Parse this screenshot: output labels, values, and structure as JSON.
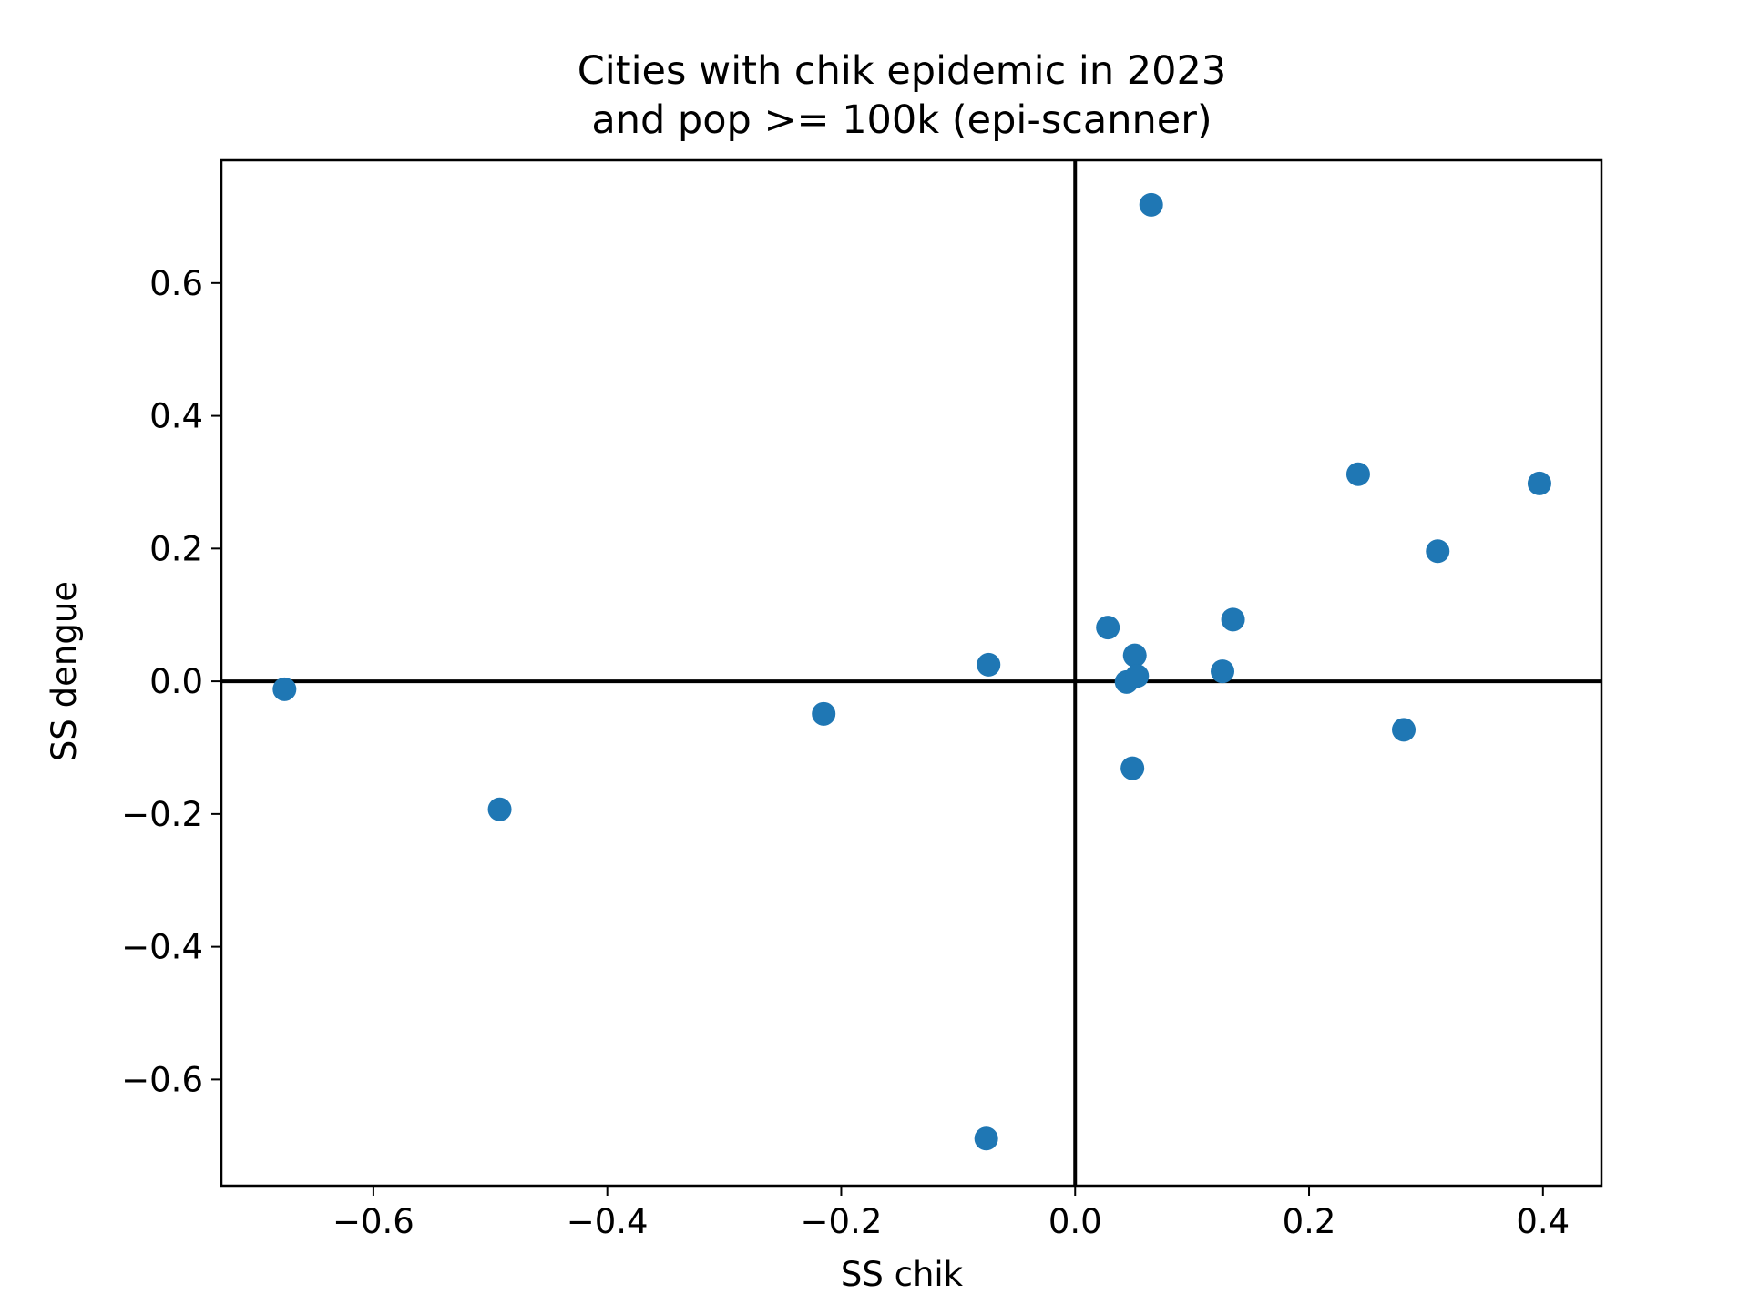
{
  "chart_data": {
    "type": "scatter",
    "title": [
      "Cities with chik epidemic in 2023",
      "and pop >= 100k (epi-scanner)"
    ],
    "xlabel": "SS chik",
    "ylabel": "SS dengue",
    "xlim": [
      -0.73,
      0.45
    ],
    "ylim": [
      -0.76,
      0.785
    ],
    "xticks": [
      -0.6,
      -0.4,
      -0.2,
      0.0,
      0.2,
      0.4
    ],
    "xtick_labels": [
      "−0.6",
      "−0.4",
      "−0.2",
      "0.0",
      "0.2",
      "0.4"
    ],
    "yticks": [
      0.6,
      0.4,
      0.2,
      0.0,
      -0.2,
      -0.4,
      -0.6
    ],
    "ytick_labels": [
      "0.6",
      "0.4",
      "0.2",
      "0.0",
      "−0.2",
      "−0.4",
      "−0.6"
    ],
    "reference_lines": {
      "x": 0.0,
      "y": 0.0
    },
    "grid": false,
    "legend": "none",
    "marker_color": "#1f77b4",
    "series": [
      {
        "points": [
          {
            "x": -0.676,
            "y": -0.012
          },
          {
            "x": -0.492,
            "y": -0.193
          },
          {
            "x": -0.215,
            "y": -0.049
          },
          {
            "x": -0.074,
            "y": 0.025
          },
          {
            "x": -0.076,
            "y": -0.689
          },
          {
            "x": 0.028,
            "y": 0.081
          },
          {
            "x": 0.044,
            "y": -0.001
          },
          {
            "x": 0.051,
            "y": 0.039
          },
          {
            "x": 0.053,
            "y": 0.008
          },
          {
            "x": 0.049,
            "y": -0.131
          },
          {
            "x": 0.065,
            "y": 0.718
          },
          {
            "x": 0.126,
            "y": 0.015
          },
          {
            "x": 0.135,
            "y": 0.093
          },
          {
            "x": 0.242,
            "y": 0.312
          },
          {
            "x": 0.281,
            "y": -0.073
          },
          {
            "x": 0.31,
            "y": 0.196
          },
          {
            "x": 0.397,
            "y": 0.298
          }
        ]
      }
    ]
  }
}
